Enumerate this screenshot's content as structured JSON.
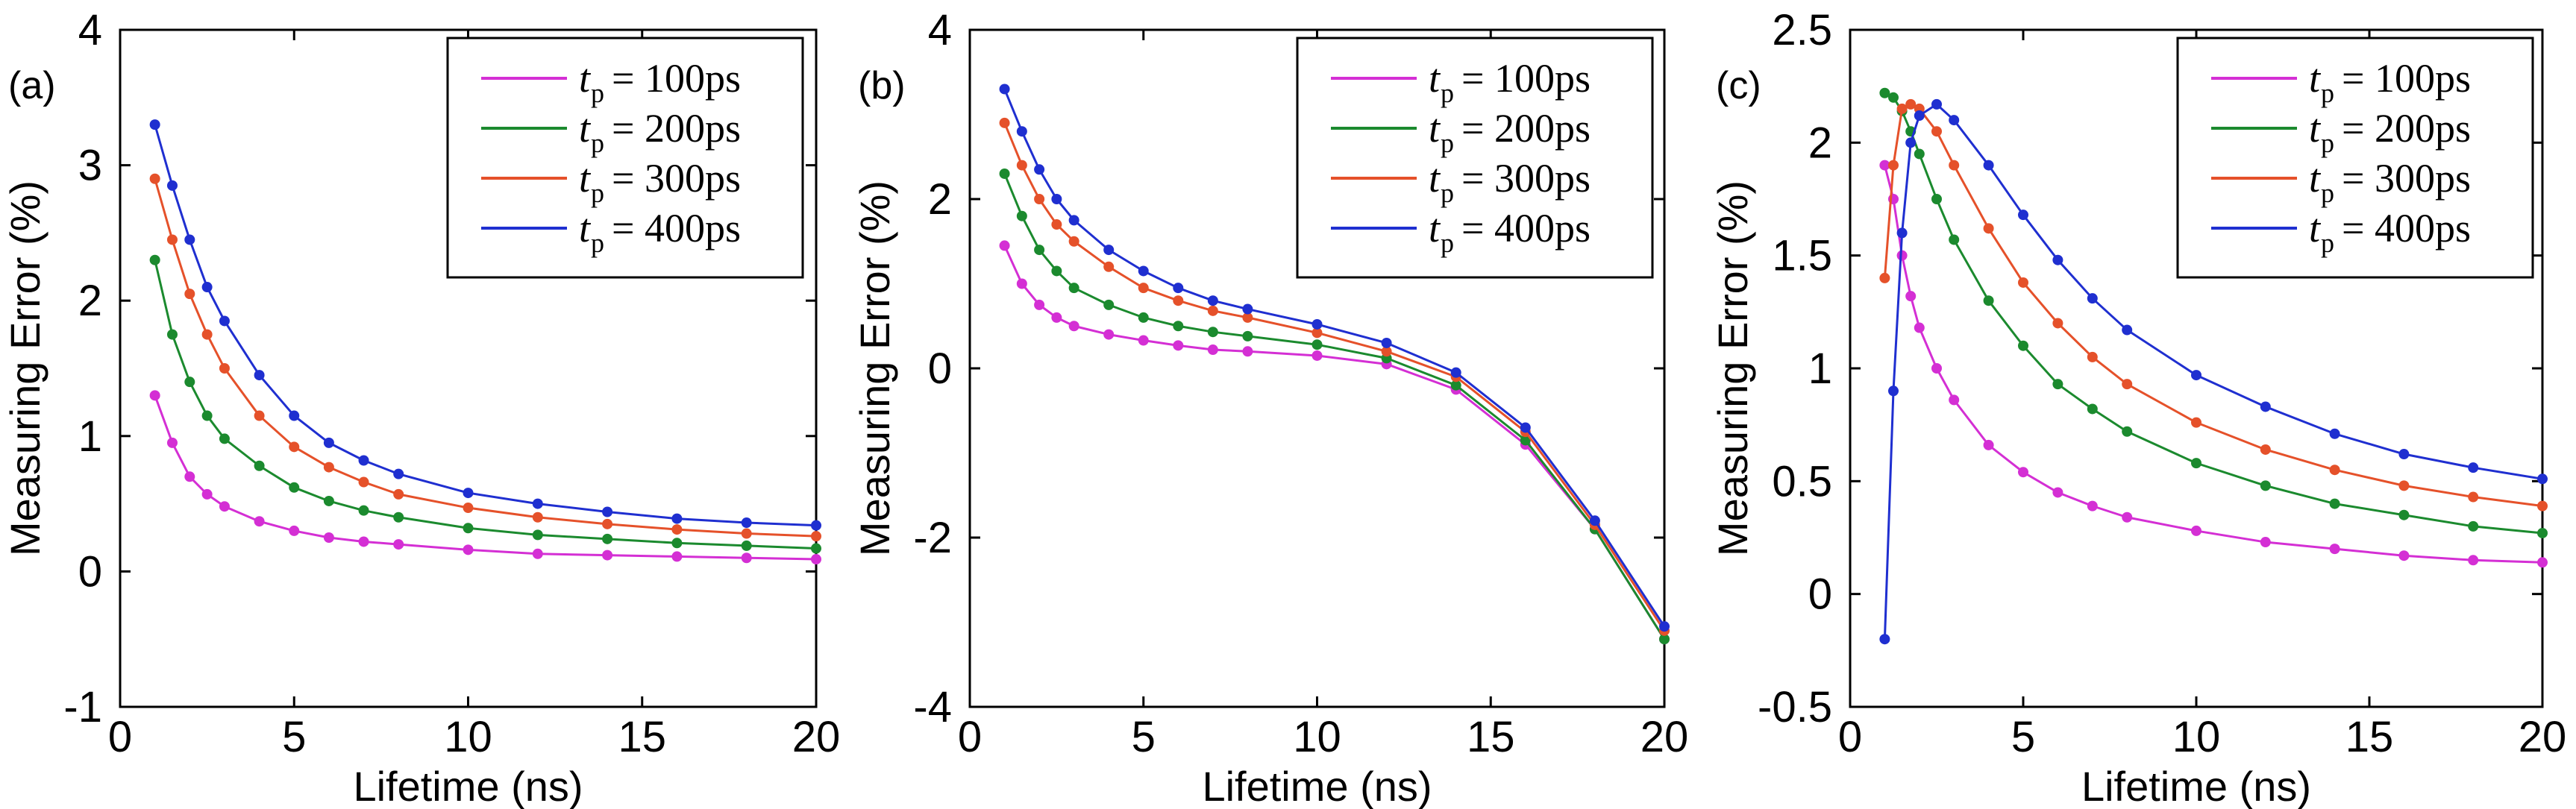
{
  "colors": {
    "100ps": "#d42fd4",
    "200ps": "#1b8a2e",
    "300ps": "#e5512a",
    "400ps": "#1f2fd0"
  },
  "chart_data": [
    {
      "type": "line",
      "panel_label": "(a)",
      "xlabel": "Lifetime (ns)",
      "ylabel": "Measuring Error (%)",
      "xlim": [
        0,
        20
      ],
      "ylim": [
        -1,
        4
      ],
      "xticks": [
        "0",
        "5",
        "10",
        "15",
        "20"
      ],
      "yticks": [
        "-1",
        "0",
        "1",
        "2",
        "3",
        "4"
      ],
      "legend": "top-right",
      "x": [
        1,
        1.5,
        2,
        2.5,
        3,
        4,
        5,
        6,
        7,
        8,
        10,
        12,
        14,
        16,
        18,
        20
      ],
      "series": [
        {
          "name": "100ps",
          "legend_var": "t",
          "legend_sub": "p",
          "legend_text": "= 100ps",
          "values": [
            1.3,
            0.95,
            0.7,
            0.57,
            0.48,
            0.37,
            0.3,
            0.25,
            0.22,
            0.2,
            0.16,
            0.13,
            0.12,
            0.11,
            0.1,
            0.09
          ]
        },
        {
          "name": "200ps",
          "legend_var": "t",
          "legend_sub": "p",
          "legend_text": "= 200ps",
          "values": [
            2.3,
            1.75,
            1.4,
            1.15,
            0.98,
            0.78,
            0.62,
            0.52,
            0.45,
            0.4,
            0.32,
            0.27,
            0.24,
            0.21,
            0.19,
            0.17
          ]
        },
        {
          "name": "300ps",
          "legend_var": "t",
          "legend_sub": "p",
          "legend_text": "= 300ps",
          "values": [
            2.9,
            2.45,
            2.05,
            1.75,
            1.5,
            1.15,
            0.92,
            0.77,
            0.66,
            0.57,
            0.47,
            0.4,
            0.35,
            0.31,
            0.28,
            0.26
          ]
        },
        {
          "name": "400ps",
          "legend_var": "t",
          "legend_sub": "p",
          "legend_text": "= 400ps",
          "values": [
            3.3,
            2.85,
            2.45,
            2.1,
            1.85,
            1.45,
            1.15,
            0.95,
            0.82,
            0.72,
            0.58,
            0.5,
            0.44,
            0.39,
            0.36,
            0.34
          ]
        }
      ]
    },
    {
      "type": "line",
      "panel_label": "(b)",
      "xlabel": "Lifetime (ns)",
      "ylabel": "Measuring Error (%)",
      "xlim": [
        0,
        20
      ],
      "ylim": [
        -4,
        4
      ],
      "xticks": [
        "0",
        "5",
        "10",
        "15",
        "20"
      ],
      "yticks": [
        "-4",
        "-2",
        "0",
        "2",
        "4"
      ],
      "legend": "top-right",
      "x": [
        1,
        1.5,
        2,
        2.5,
        3,
        4,
        5,
        6,
        7,
        8,
        10,
        12,
        14,
        16,
        18,
        20
      ],
      "series": [
        {
          "name": "100ps",
          "legend_var": "t",
          "legend_sub": "p",
          "legend_text": "= 100ps",
          "values": [
            1.45,
            1.0,
            0.75,
            0.6,
            0.5,
            0.4,
            0.33,
            0.27,
            0.22,
            0.2,
            0.15,
            0.05,
            -0.25,
            -0.9,
            -1.9,
            -3.2
          ]
        },
        {
          "name": "200ps",
          "legend_var": "t",
          "legend_sub": "p",
          "legend_text": "= 200ps",
          "values": [
            2.3,
            1.8,
            1.4,
            1.15,
            0.95,
            0.75,
            0.6,
            0.5,
            0.43,
            0.38,
            0.28,
            0.12,
            -0.2,
            -0.85,
            -1.9,
            -3.2
          ]
        },
        {
          "name": "300ps",
          "legend_var": "t",
          "legend_sub": "p",
          "legend_text": "= 300ps",
          "values": [
            2.9,
            2.4,
            2.0,
            1.7,
            1.5,
            1.2,
            0.95,
            0.8,
            0.68,
            0.6,
            0.42,
            0.2,
            -0.1,
            -0.75,
            -1.85,
            -3.1
          ]
        },
        {
          "name": "400ps",
          "legend_var": "t",
          "legend_sub": "p",
          "legend_text": "= 400ps",
          "values": [
            3.3,
            2.8,
            2.35,
            2.0,
            1.75,
            1.4,
            1.15,
            0.95,
            0.8,
            0.7,
            0.52,
            0.3,
            -0.05,
            -0.7,
            -1.8,
            -3.05
          ]
        }
      ]
    },
    {
      "type": "line",
      "panel_label": "(c)",
      "xlabel": "Lifetime (ns)",
      "ylabel": "Measuring Error (%)",
      "xlim": [
        0,
        20
      ],
      "ylim": [
        -0.5,
        2.5
      ],
      "xticks": [
        "0",
        "5",
        "10",
        "15",
        "20"
      ],
      "yticks": [
        "-0.5",
        "0",
        "0.5",
        "1",
        "1.5",
        "2",
        "2.5"
      ],
      "legend": "top-right",
      "x": [
        1,
        1.25,
        1.5,
        1.75,
        2,
        2.5,
        3,
        4,
        5,
        6,
        7,
        8,
        10,
        12,
        14,
        16,
        18,
        20
      ],
      "series": [
        {
          "name": "100ps",
          "legend_var": "t",
          "legend_sub": "p",
          "legend_text": "= 100ps",
          "values": [
            1.9,
            1.75,
            1.5,
            1.32,
            1.18,
            1.0,
            0.86,
            0.66,
            0.54,
            0.45,
            0.39,
            0.34,
            0.28,
            0.23,
            0.2,
            0.17,
            0.15,
            0.14
          ]
        },
        {
          "name": "200ps",
          "legend_var": "t",
          "legend_sub": "p",
          "legend_text": "= 200ps",
          "values": [
            2.22,
            2.2,
            2.14,
            2.05,
            1.95,
            1.75,
            1.57,
            1.3,
            1.1,
            0.93,
            0.82,
            0.72,
            0.58,
            0.48,
            0.4,
            0.35,
            0.3,
            0.27
          ]
        },
        {
          "name": "300ps",
          "legend_var": "t",
          "legend_sub": "p",
          "legend_text": "= 300ps",
          "values": [
            1.4,
            1.9,
            2.15,
            2.17,
            2.15,
            2.05,
            1.9,
            1.62,
            1.38,
            1.2,
            1.05,
            0.93,
            0.76,
            0.64,
            0.55,
            0.48,
            0.43,
            0.39
          ]
        },
        {
          "name": "400ps",
          "legend_var": "t",
          "legend_sub": "p",
          "legend_text": "= 400ps",
          "values": [
            -0.2,
            0.9,
            1.6,
            2.0,
            2.12,
            2.17,
            2.1,
            1.9,
            1.68,
            1.48,
            1.31,
            1.17,
            0.97,
            0.83,
            0.71,
            0.62,
            0.56,
            0.51
          ]
        }
      ]
    }
  ]
}
